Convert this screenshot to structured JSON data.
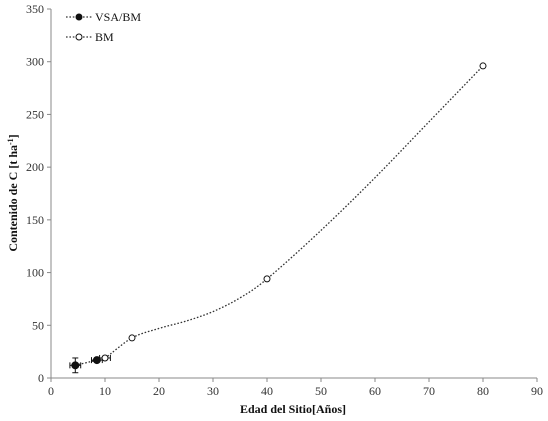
{
  "chart_data": {
    "type": "scatter",
    "xlabel": "Edad del Sitio[Años]",
    "ylabel_main": "Contenido de C [t ha",
    "ylabel_sup": "-1",
    "ylabel_end": "]",
    "xlim": [
      0,
      90
    ],
    "ylim": [
      0,
      350
    ],
    "xticks": [
      "0",
      "10",
      "20",
      "30",
      "40",
      "50",
      "60",
      "70",
      "80",
      "90"
    ],
    "yticks": [
      "0",
      "50",
      "100",
      "150",
      "200",
      "250",
      "300",
      "350"
    ],
    "grid": false,
    "legend_position": "top-left",
    "series": [
      {
        "name": "VSA/BM",
        "marker": "filled-circle",
        "color": "#111111",
        "points": [
          {
            "x": 4.5,
            "y": 12,
            "xerr": 1,
            "yerr": 7
          },
          {
            "x": 8.5,
            "y": 17,
            "xerr": 1,
            "yerr": 1.5
          }
        ]
      },
      {
        "name": "BM",
        "marker": "open-circle",
        "color": "#111111",
        "points": [
          {
            "x": 10,
            "y": 19,
            "xerr": 1,
            "yerr": 1.5
          },
          {
            "x": 15,
            "y": 38
          },
          {
            "x": 40,
            "y": 94
          },
          {
            "x": 80,
            "y": 296
          }
        ]
      }
    ],
    "trend_line": {
      "style": "dotted",
      "color": "#333333",
      "x": [
        4.5,
        8.5,
        10,
        15,
        20,
        25,
        30,
        35,
        40,
        50,
        60,
        70,
        80
      ],
      "y": [
        12,
        17,
        19,
        38,
        47,
        54,
        63,
        76,
        94,
        140,
        190,
        243,
        296
      ]
    }
  }
}
